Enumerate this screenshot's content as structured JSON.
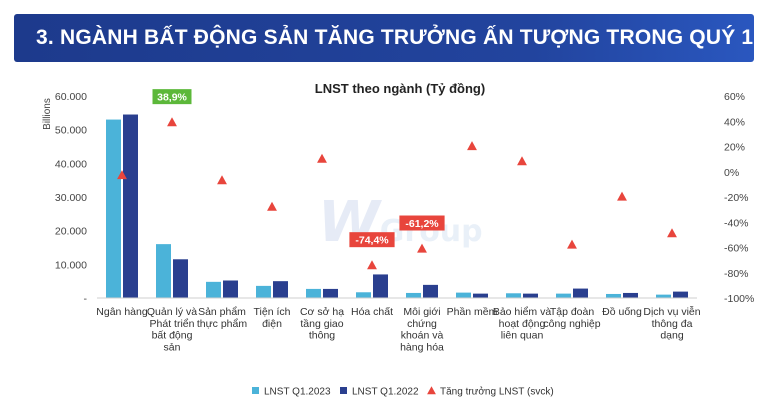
{
  "banner": {
    "title": "3. NGÀNH BẤT ĐỘNG SẢN TĂNG TRƯỞNG ẤN TƯỢNG TRONG QUÝ 1"
  },
  "watermark": {
    "mark": "W",
    "text": "Group"
  },
  "chart_data": {
    "type": "bar",
    "title": "LNST theo ngành (Tỷ đồng)",
    "ylabel": "Billions",
    "ylim": [
      0,
      60000
    ],
    "y_ticks": [
      "-",
      "10.000",
      "20.000",
      "30.000",
      "40.000",
      "50.000",
      "60.000"
    ],
    "y2lim": [
      -100,
      60
    ],
    "y2_ticks": [
      "-100%",
      "-80%",
      "-60%",
      "-40%",
      "-20%",
      "0%",
      "20%",
      "40%",
      "60%"
    ],
    "categories": [
      [
        "Ngân hàng"
      ],
      [
        "Quản lý và",
        "Phát triển",
        "bất động",
        "sản"
      ],
      [
        "Sản phẩm",
        "thực phẩm"
      ],
      [
        "Tiện ích",
        "điện"
      ],
      [
        "Cơ sở hạ",
        "tầng giao",
        "thông"
      ],
      [
        "Hóa chất"
      ],
      [
        "Môi giới",
        "chứng",
        "khoán và",
        "hàng hóa"
      ],
      [
        "Phần mềm"
      ],
      [
        "Bảo hiểm và",
        "hoạt động",
        "liên quan"
      ],
      [
        "Tập đoàn",
        "công nghiệp"
      ],
      [
        "Đồ uống"
      ],
      [
        "Dịch vụ viễn",
        "thông đa",
        "dạng"
      ]
    ],
    "series": [
      {
        "name": "LNST Q1.2023",
        "color": "#4bb3d9",
        "values": [
          53000,
          16000,
          4800,
          3600,
          2700,
          1700,
          1500,
          1600,
          1400,
          1300,
          1200,
          1000
        ]
      },
      {
        "name": "LNST Q1.2022",
        "color": "#2a3f8f",
        "values": [
          54500,
          11500,
          5200,
          5000,
          2700,
          7000,
          3900,
          1300,
          1300,
          2800,
          1500,
          1900
        ]
      }
    ],
    "growth": {
      "name": "Tăng trưởng LNST (svck)",
      "color": "#e8453c",
      "values": [
        -3,
        38.9,
        -7,
        -28,
        10,
        -74.4,
        -61.2,
        20,
        8,
        -58,
        -20,
        -49
      ]
    },
    "callouts": [
      {
        "index": 1,
        "label": "38,9%",
        "color": "#5cb83a"
      },
      {
        "index": 5,
        "label": "-74,4%",
        "color": "#e8453c"
      },
      {
        "index": 6,
        "label": "-61,2%",
        "color": "#e8453c"
      }
    ],
    "legend_position": "bottom"
  }
}
